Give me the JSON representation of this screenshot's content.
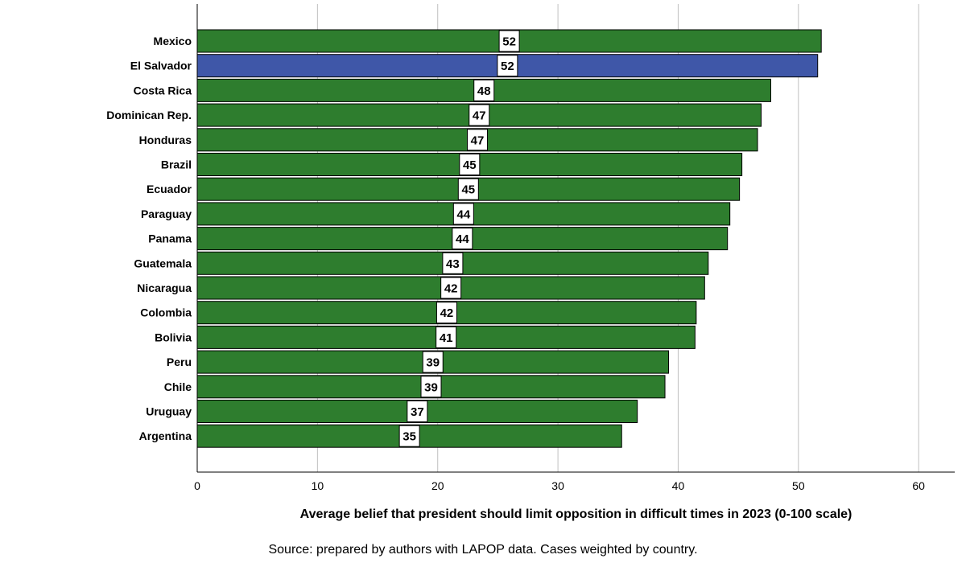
{
  "chart_data": {
    "type": "bar",
    "orientation": "horizontal",
    "categories": [
      "Mexico",
      "El Salvador",
      "Costa Rica",
      "Dominican Rep.",
      "Honduras",
      "Brazil",
      "Ecuador",
      "Paraguay",
      "Panama",
      "Guatemala",
      "Nicaragua",
      "Colombia",
      "Bolivia",
      "Peru",
      "Chile",
      "Uruguay",
      "Argentina"
    ],
    "values": [
      51.9,
      51.6,
      47.7,
      46.9,
      46.6,
      45.3,
      45.1,
      44.3,
      44.1,
      42.5,
      42.2,
      41.5,
      41.4,
      39.2,
      38.9,
      36.6,
      35.3
    ],
    "data_labels": [
      "52",
      "52",
      "48",
      "47",
      "47",
      "45",
      "45",
      "44",
      "44",
      "43",
      "42",
      "42",
      "41",
      "39",
      "39",
      "37",
      "35"
    ],
    "highlight": "El Salvador",
    "xlabel": "Average belief that president should limit opposition in difficult times in 2023 (0-100 scale)",
    "ylabel": "",
    "xlim": [
      0,
      63
    ],
    "xticks": [
      0,
      10,
      20,
      30,
      40,
      50,
      60
    ],
    "grid": "vertical",
    "colors": {
      "bar": "#2e7d2e",
      "highlight": "#3f57a8",
      "grid": "#c0c0c0"
    }
  },
  "source_note": "Source: prepared by authors with LAPOP data. Cases weighted by country."
}
